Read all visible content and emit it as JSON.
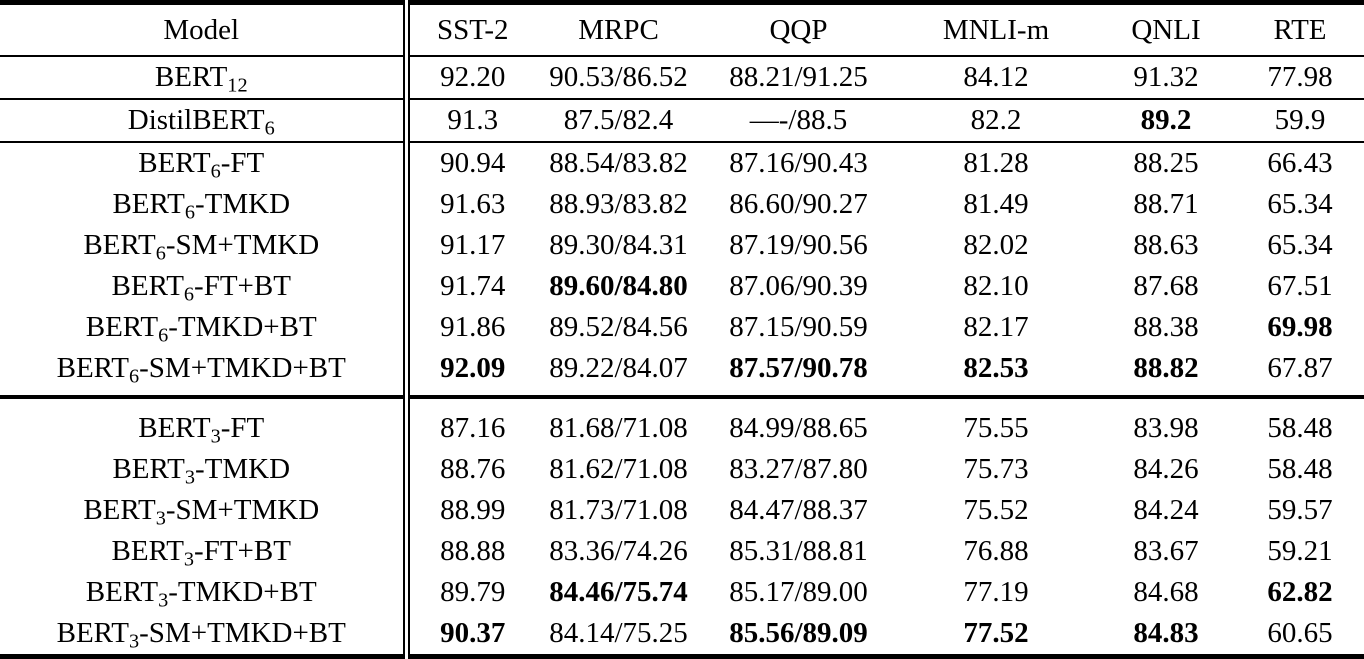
{
  "colors": {
    "text": "#000000",
    "background": "#ffffff",
    "rule": "#000000"
  },
  "table": {
    "columns": [
      "Model",
      "SST-2",
      "MRPC",
      "QQP",
      "MNLI-m",
      "QNLI",
      "RTE"
    ],
    "rows": [
      {
        "model": {
          "prefix": "BERT",
          "sub": "12",
          "suffix": ""
        },
        "cells": [
          {
            "v": "92.20",
            "bold": false
          },
          {
            "v": "90.53/86.52",
            "bold": false
          },
          {
            "v": "88.21/91.25",
            "bold": false
          },
          {
            "v": "84.12",
            "bold": false
          },
          {
            "v": "91.32",
            "bold": false
          },
          {
            "v": "77.98",
            "bold": false
          }
        ],
        "rule_below": "thin",
        "group_start": false
      },
      {
        "model": {
          "prefix": "DistilBERT",
          "sub": "6",
          "suffix": ""
        },
        "cells": [
          {
            "v": "91.3",
            "bold": false
          },
          {
            "v": "87.5/82.4",
            "bold": false
          },
          {
            "v": "—-/88.5",
            "bold": false
          },
          {
            "v": "82.2",
            "bold": false
          },
          {
            "v": "89.2",
            "bold": true
          },
          {
            "v": "59.9",
            "bold": false
          }
        ],
        "rule_below": "thin",
        "group_start": false
      },
      {
        "model": {
          "prefix": "BERT",
          "sub": "6",
          "suffix": "-FT"
        },
        "cells": [
          {
            "v": "90.94",
            "bold": false
          },
          {
            "v": "88.54/83.82",
            "bold": false
          },
          {
            "v": "87.16/90.43",
            "bold": false
          },
          {
            "v": "81.28",
            "bold": false
          },
          {
            "v": "88.25",
            "bold": false
          },
          {
            "v": "66.43",
            "bold": false
          }
        ],
        "rule_below": null,
        "group_start": false
      },
      {
        "model": {
          "prefix": "BERT",
          "sub": "6",
          "suffix": "-TMKD"
        },
        "cells": [
          {
            "v": "91.63",
            "bold": false
          },
          {
            "v": "88.93/83.82",
            "bold": false
          },
          {
            "v": "86.60/90.27",
            "bold": false
          },
          {
            "v": "81.49",
            "bold": false
          },
          {
            "v": "88.71",
            "bold": false
          },
          {
            "v": "65.34",
            "bold": false
          }
        ],
        "rule_below": null,
        "group_start": false
      },
      {
        "model": {
          "prefix": "BERT",
          "sub": "6",
          "suffix": "-SM+TMKD"
        },
        "cells": [
          {
            "v": "91.17",
            "bold": false
          },
          {
            "v": "89.30/84.31",
            "bold": false
          },
          {
            "v": "87.19/90.56",
            "bold": false
          },
          {
            "v": "82.02",
            "bold": false
          },
          {
            "v": "88.63",
            "bold": false
          },
          {
            "v": "65.34",
            "bold": false
          }
        ],
        "rule_below": null,
        "group_start": false
      },
      {
        "model": {
          "prefix": "BERT",
          "sub": "6",
          "suffix": "-FT+BT"
        },
        "cells": [
          {
            "v": "91.74",
            "bold": false
          },
          {
            "v": "89.60/84.80",
            "bold": true
          },
          {
            "v": "87.06/90.39",
            "bold": false
          },
          {
            "v": "82.10",
            "bold": false
          },
          {
            "v": "87.68",
            "bold": false
          },
          {
            "v": "67.51",
            "bold": false
          }
        ],
        "rule_below": null,
        "group_start": false
      },
      {
        "model": {
          "prefix": "BERT",
          "sub": "6",
          "suffix": "-TMKD+BT"
        },
        "cells": [
          {
            "v": "91.86",
            "bold": false
          },
          {
            "v": "89.52/84.56",
            "bold": false
          },
          {
            "v": "87.15/90.59",
            "bold": false
          },
          {
            "v": "82.17",
            "bold": false
          },
          {
            "v": "88.38",
            "bold": false
          },
          {
            "v": "69.98",
            "bold": true
          }
        ],
        "rule_below": null,
        "group_start": false
      },
      {
        "model": {
          "prefix": "BERT",
          "sub": "6",
          "suffix": "-SM+TMKD+BT"
        },
        "cells": [
          {
            "v": "92.09",
            "bold": true
          },
          {
            "v": "89.22/84.07",
            "bold": false
          },
          {
            "v": "87.57/90.78",
            "bold": true
          },
          {
            "v": "82.53",
            "bold": true
          },
          {
            "v": "88.82",
            "bold": true
          },
          {
            "v": "67.87",
            "bold": false
          }
        ],
        "rule_below": "thick",
        "group_start": false
      },
      {
        "model": {
          "prefix": "BERT",
          "sub": "3",
          "suffix": "-FT"
        },
        "cells": [
          {
            "v": "87.16",
            "bold": false
          },
          {
            "v": "81.68/71.08",
            "bold": false
          },
          {
            "v": "84.99/88.65",
            "bold": false
          },
          {
            "v": "75.55",
            "bold": false
          },
          {
            "v": "83.98",
            "bold": false
          },
          {
            "v": "58.48",
            "bold": false
          }
        ],
        "rule_below": null,
        "group_start": true
      },
      {
        "model": {
          "prefix": "BERT",
          "sub": "3",
          "suffix": "-TMKD"
        },
        "cells": [
          {
            "v": "88.76",
            "bold": false
          },
          {
            "v": "81.62/71.08",
            "bold": false
          },
          {
            "v": "83.27/87.80",
            "bold": false
          },
          {
            "v": "75.73",
            "bold": false
          },
          {
            "v": "84.26",
            "bold": false
          },
          {
            "v": "58.48",
            "bold": false
          }
        ],
        "rule_below": null,
        "group_start": false
      },
      {
        "model": {
          "prefix": "BERT",
          "sub": "3",
          "suffix": "-SM+TMKD"
        },
        "cells": [
          {
            "v": "88.99",
            "bold": false
          },
          {
            "v": "81.73/71.08",
            "bold": false
          },
          {
            "v": "84.47/88.37",
            "bold": false
          },
          {
            "v": "75.52",
            "bold": false
          },
          {
            "v": "84.24",
            "bold": false
          },
          {
            "v": "59.57",
            "bold": false
          }
        ],
        "rule_below": null,
        "group_start": false
      },
      {
        "model": {
          "prefix": "BERT",
          "sub": "3",
          "suffix": "-FT+BT"
        },
        "cells": [
          {
            "v": "88.88",
            "bold": false
          },
          {
            "v": "83.36/74.26",
            "bold": false
          },
          {
            "v": "85.31/88.81",
            "bold": false
          },
          {
            "v": "76.88",
            "bold": false
          },
          {
            "v": "83.67",
            "bold": false
          },
          {
            "v": "59.21",
            "bold": false
          }
        ],
        "rule_below": null,
        "group_start": false
      },
      {
        "model": {
          "prefix": "BERT",
          "sub": "3",
          "suffix": "-TMKD+BT"
        },
        "cells": [
          {
            "v": "89.79",
            "bold": false
          },
          {
            "v": "84.46/75.74",
            "bold": true
          },
          {
            "v": "85.17/89.00",
            "bold": false
          },
          {
            "v": "77.19",
            "bold": false
          },
          {
            "v": "84.68",
            "bold": false
          },
          {
            "v": "62.82",
            "bold": true
          }
        ],
        "rule_below": null,
        "group_start": false
      },
      {
        "model": {
          "prefix": "BERT",
          "sub": "3",
          "suffix": "-SM+TMKD+BT"
        },
        "cells": [
          {
            "v": "90.37",
            "bold": true
          },
          {
            "v": "84.14/75.25",
            "bold": false
          },
          {
            "v": "85.56/89.09",
            "bold": true
          },
          {
            "v": "77.52",
            "bold": true
          },
          {
            "v": "84.83",
            "bold": true
          },
          {
            "v": "60.65",
            "bold": false
          }
        ],
        "rule_below": null,
        "group_start": false
      }
    ]
  }
}
